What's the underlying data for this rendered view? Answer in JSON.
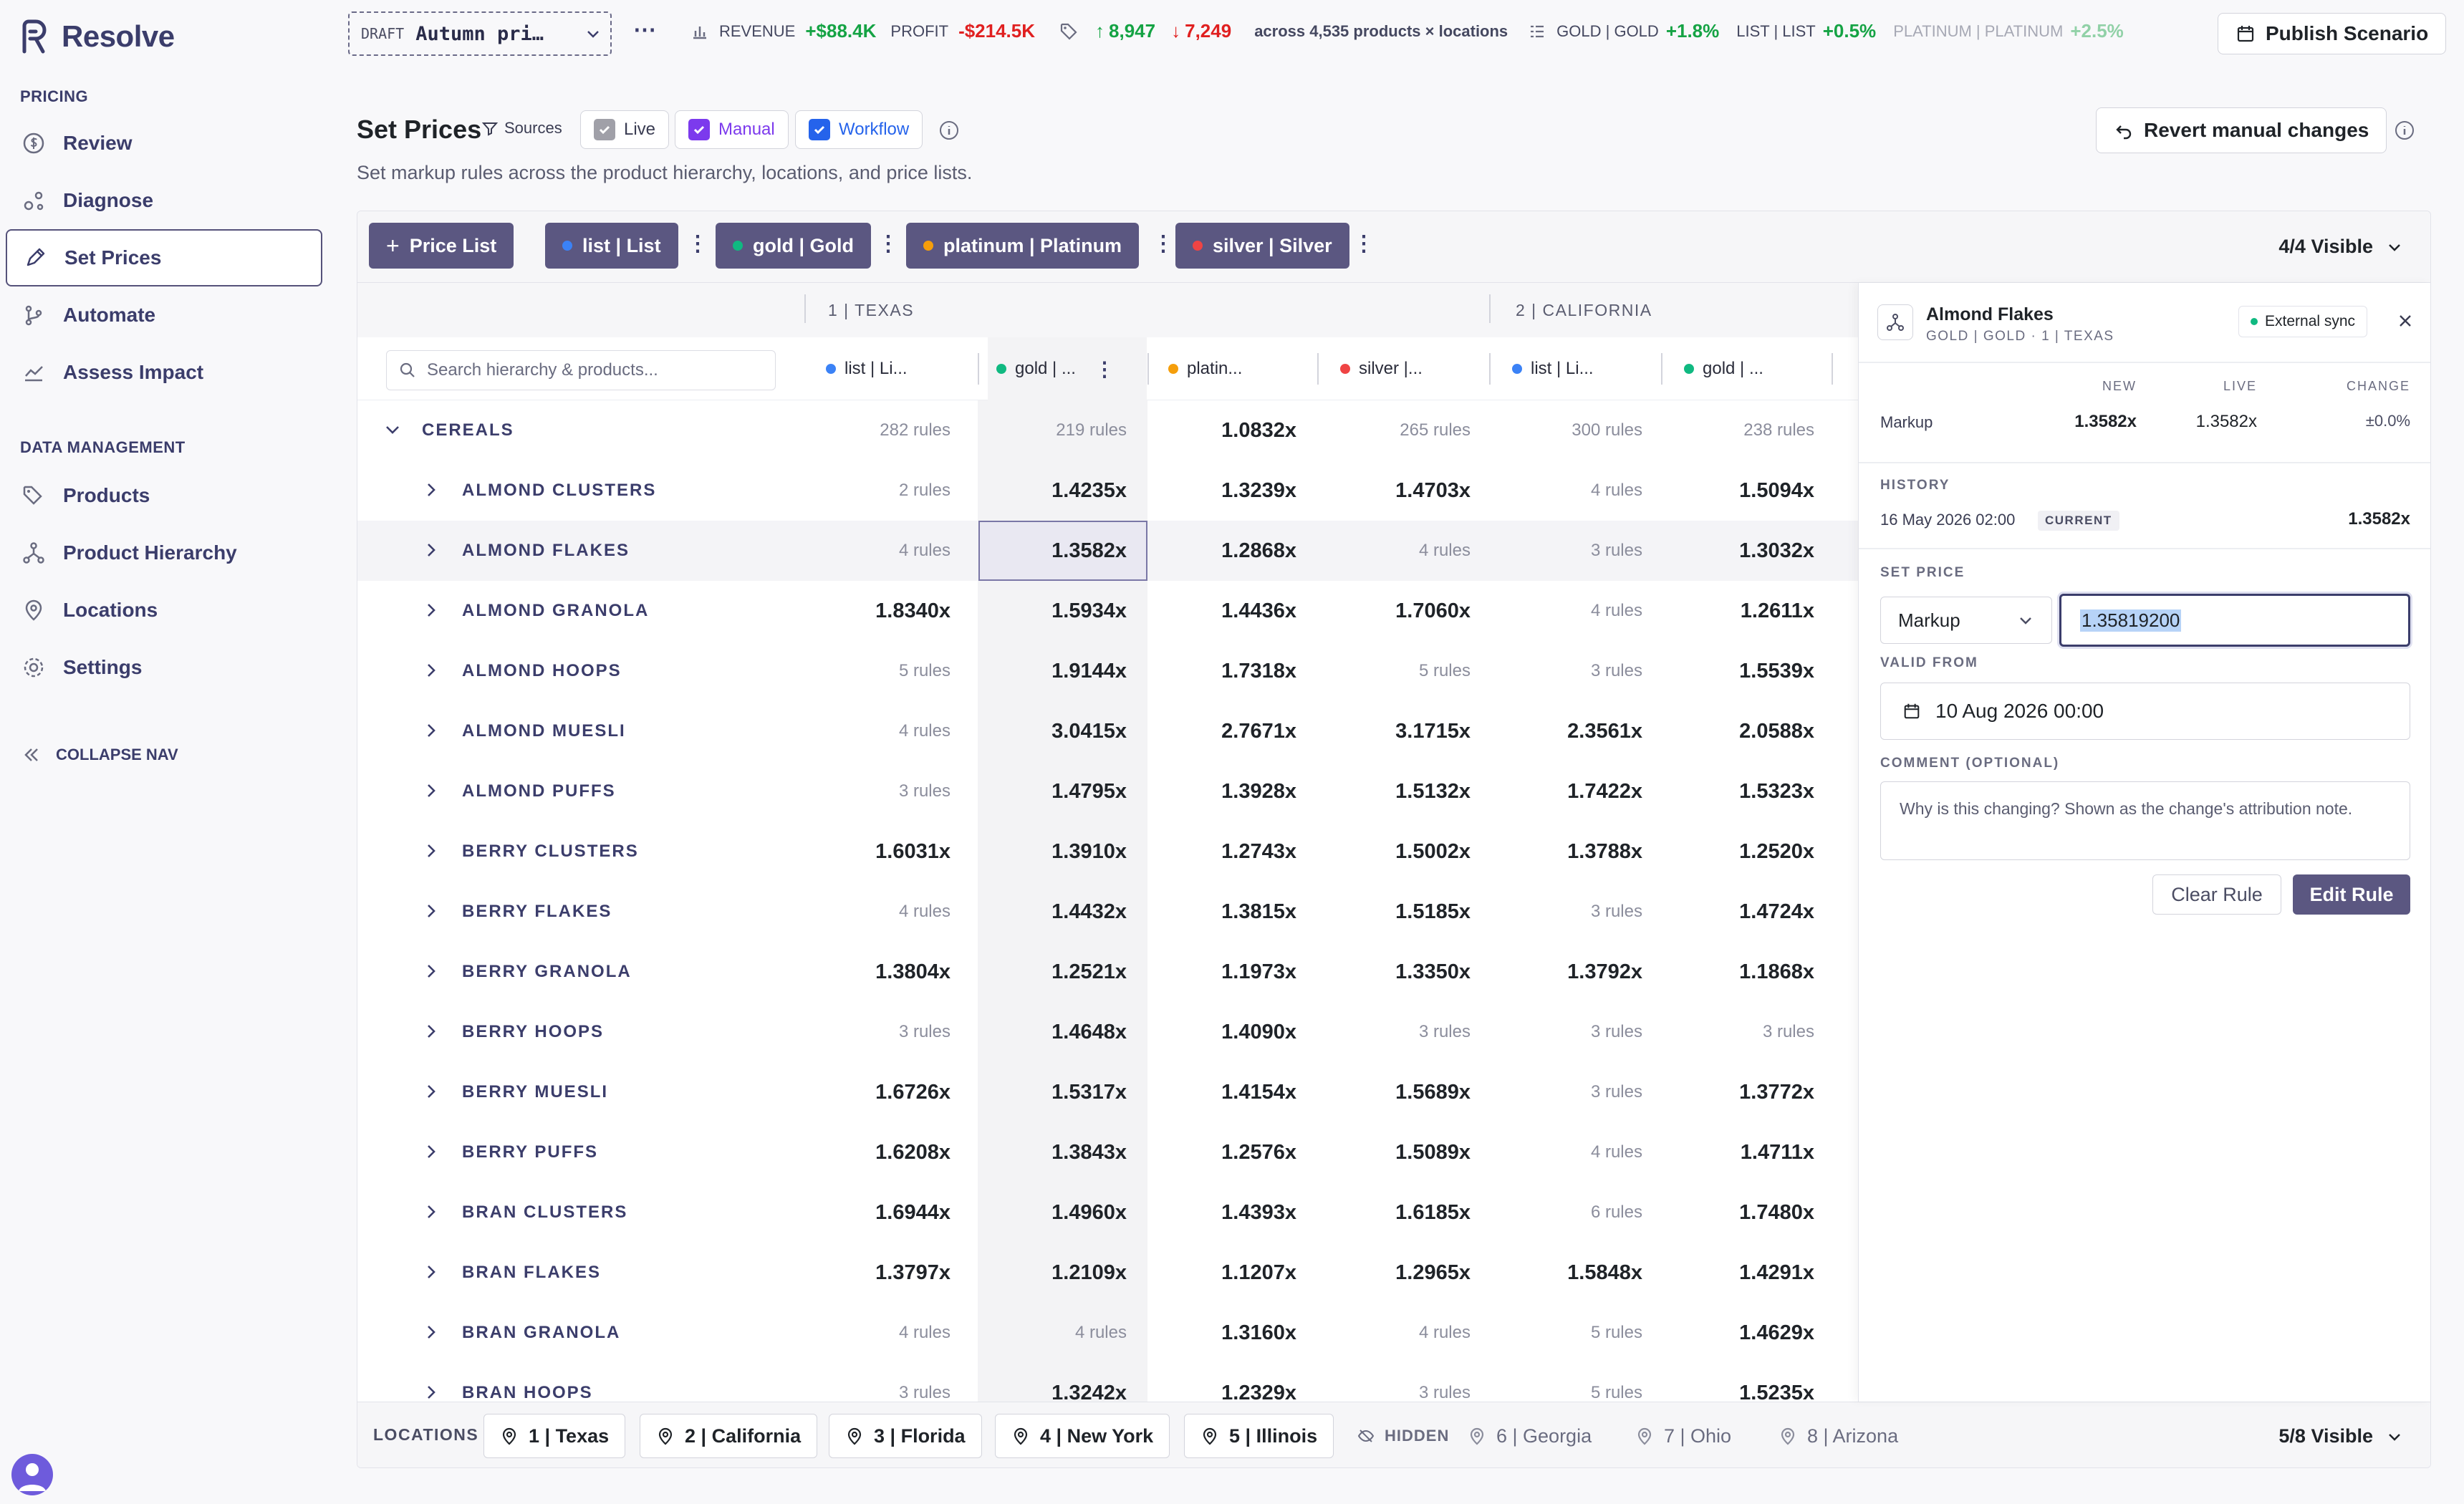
{
  "app": {
    "name": "Resolve"
  },
  "sidebar": {
    "pricing_label": "PRICING",
    "pricing_items": [
      {
        "label": "Review",
        "icon": "dollar-circle-icon"
      },
      {
        "label": "Diagnose",
        "icon": "nodes-icon"
      },
      {
        "label": "Set Prices",
        "icon": "pencil-icon",
        "active": true
      },
      {
        "label": "Automate",
        "icon": "branch-icon"
      },
      {
        "label": "Assess Impact",
        "icon": "chart-line-icon"
      }
    ],
    "data_label": "DATA MANAGEMENT",
    "data_items": [
      {
        "label": "Products",
        "icon": "tags-icon"
      },
      {
        "label": "Product Hierarchy",
        "icon": "hierarchy-icon"
      },
      {
        "label": "Locations",
        "icon": "map-pin-icon"
      },
      {
        "label": "Settings",
        "icon": "gear-icon"
      }
    ],
    "collapse_label": "COLLAPSE NAV"
  },
  "topbar": {
    "draft_label": "DRAFT",
    "scenario_name": "Autumn pri…",
    "revenue_label": "REVENUE",
    "revenue_value": "+$88.4K",
    "profit_label": "PROFIT",
    "profit_value": "-$214.5K",
    "up_count": "8,947",
    "down_count": "7,249",
    "scope_text": "across 4,535 products × locations",
    "pl_stats": [
      {
        "label": "GOLD | GOLD",
        "value": "+1.8%"
      },
      {
        "label": "LIST | LIST",
        "value": "+0.5%"
      },
      {
        "label": "PLATINUM | PLATINUM",
        "value": "+2.5%"
      }
    ],
    "publish_label": "Publish Scenario"
  },
  "page": {
    "title": "Set Prices",
    "sources_label": "Sources",
    "source_chips": [
      "Live",
      "Manual",
      "Workflow"
    ],
    "subtitle": "Set markup rules across the product hierarchy, locations, and price lists.",
    "revert_label": "Revert manual changes"
  },
  "price_lists": {
    "add_label": "Price List",
    "items": [
      {
        "label": "list | List",
        "color": "#3b82f6"
      },
      {
        "label": "gold | Gold",
        "color": "#10b981"
      },
      {
        "label": "platinum | Platinum",
        "color": "#f59e0b"
      },
      {
        "label": "silver | Silver",
        "color": "#ef4444"
      }
    ],
    "visible_label": "4/4 Visible"
  },
  "grid": {
    "location_headers": [
      "1 | TEXAS",
      "2 | CALIFORNIA"
    ],
    "search_placeholder": "Search hierarchy & products...",
    "columns": [
      {
        "label": "list | Li...",
        "color": "#3b82f6"
      },
      {
        "label": "gold | ...",
        "color": "#10b981"
      },
      {
        "label": "platin...",
        "color": "#f59e0b"
      },
      {
        "label": "silver |...",
        "color": "#ef4444"
      },
      {
        "label": "list | Li...",
        "color": "#3b82f6"
      },
      {
        "label": "gold | ...",
        "color": "#10b981"
      }
    ],
    "group": {
      "name": "CEREALS",
      "cells": [
        "282 rules",
        "219 rules",
        "1.0832x",
        "265 rules",
        "300 rules",
        "238 rules"
      ]
    },
    "rows": [
      {
        "name": "ALMOND CLUSTERS",
        "cells": [
          "2 rules",
          "1.4235x",
          "1.3239x",
          "1.4703x",
          "4 rules",
          "1.5094x"
        ]
      },
      {
        "name": "ALMOND FLAKES",
        "cells": [
          "4 rules",
          "1.3582x",
          "1.2868x",
          "4 rules",
          "3 rules",
          "1.3032x"
        ],
        "selected": true
      },
      {
        "name": "ALMOND GRANOLA",
        "cells": [
          "1.8340x",
          "1.5934x",
          "1.4436x",
          "1.7060x",
          "4 rules",
          "1.2611x"
        ]
      },
      {
        "name": "ALMOND HOOPS",
        "cells": [
          "5 rules",
          "1.9144x",
          "1.7318x",
          "5 rules",
          "3 rules",
          "1.5539x"
        ]
      },
      {
        "name": "ALMOND MUESLI",
        "cells": [
          "4 rules",
          "3.0415x",
          "2.7671x",
          "3.1715x",
          "2.3561x",
          "2.0588x"
        ]
      },
      {
        "name": "ALMOND PUFFS",
        "cells": [
          "3 rules",
          "1.4795x",
          "1.3928x",
          "1.5132x",
          "1.7422x",
          "1.5323x"
        ]
      },
      {
        "name": "BERRY CLUSTERS",
        "cells": [
          "1.6031x",
          "1.3910x",
          "1.2743x",
          "1.5002x",
          "1.3788x",
          "1.2520x"
        ]
      },
      {
        "name": "BERRY FLAKES",
        "cells": [
          "4 rules",
          "1.4432x",
          "1.3815x",
          "1.5185x",
          "3 rules",
          "1.4724x"
        ]
      },
      {
        "name": "BERRY GRANOLA",
        "cells": [
          "1.3804x",
          "1.2521x",
          "1.1973x",
          "1.3350x",
          "1.3792x",
          "1.1868x"
        ]
      },
      {
        "name": "BERRY HOOPS",
        "cells": [
          "3 rules",
          "1.4648x",
          "1.4090x",
          "3 rules",
          "3 rules",
          "3 rules"
        ]
      },
      {
        "name": "BERRY MUESLI",
        "cells": [
          "1.6726x",
          "1.5317x",
          "1.4154x",
          "1.5689x",
          "3 rules",
          "1.3772x"
        ]
      },
      {
        "name": "BERRY PUFFS",
        "cells": [
          "1.6208x",
          "1.3843x",
          "1.2576x",
          "1.5089x",
          "4 rules",
          "1.4711x"
        ]
      },
      {
        "name": "BRAN CLUSTERS",
        "cells": [
          "1.6944x",
          "1.4960x",
          "1.4393x",
          "1.6185x",
          "6 rules",
          "1.7480x"
        ]
      },
      {
        "name": "BRAN FLAKES",
        "cells": [
          "1.3797x",
          "1.2109x",
          "1.1207x",
          "1.2965x",
          "1.5848x",
          "1.4291x"
        ]
      },
      {
        "name": "BRAN GRANOLA",
        "cells": [
          "4 rules",
          "4 rules",
          "1.3160x",
          "4 rules",
          "5 rules",
          "1.4629x"
        ]
      },
      {
        "name": "BRAN HOOPS",
        "cells": [
          "3 rules",
          "1.3242x",
          "1.2329x",
          "3 rules",
          "5 rules",
          "1.5235x"
        ]
      }
    ]
  },
  "locations_bar": {
    "label": "LOCATIONS",
    "visible": [
      "1 | Texas",
      "2 | California",
      "3 | Florida",
      "4 | New York",
      "5 | Illinois"
    ],
    "hidden_label": "HIDDEN",
    "hidden": [
      "6 | Georgia",
      "7 | Ohio",
      "8 | Arizona"
    ],
    "visible_label": "5/8 Visible"
  },
  "detail": {
    "product": "Almond Flakes",
    "context": "GOLD | GOLD · 1 | TEXAS",
    "sync_badge": "External sync",
    "col_new": "NEW",
    "col_live": "LIVE",
    "col_change": "CHANGE",
    "metric_label": "Markup",
    "new_value": "1.3582x",
    "live_value": "1.3582x",
    "change_value": "±0.0%",
    "history_label": "HISTORY",
    "history_date": "16 May 2026 02:00",
    "history_badge": "CURRENT",
    "history_value": "1.3582x",
    "set_price_label": "SET PRICE",
    "price_type": "Markup",
    "price_input": "1.35819200",
    "valid_from_label": "VALID FROM",
    "valid_from": "10 Aug 2026 00:00",
    "comment_label": "COMMENT (OPTIONAL)",
    "comment_placeholder": "Why is this changing? Shown as the change's attribution note.",
    "clear_label": "Clear Rule",
    "edit_label": "Edit Rule"
  }
}
